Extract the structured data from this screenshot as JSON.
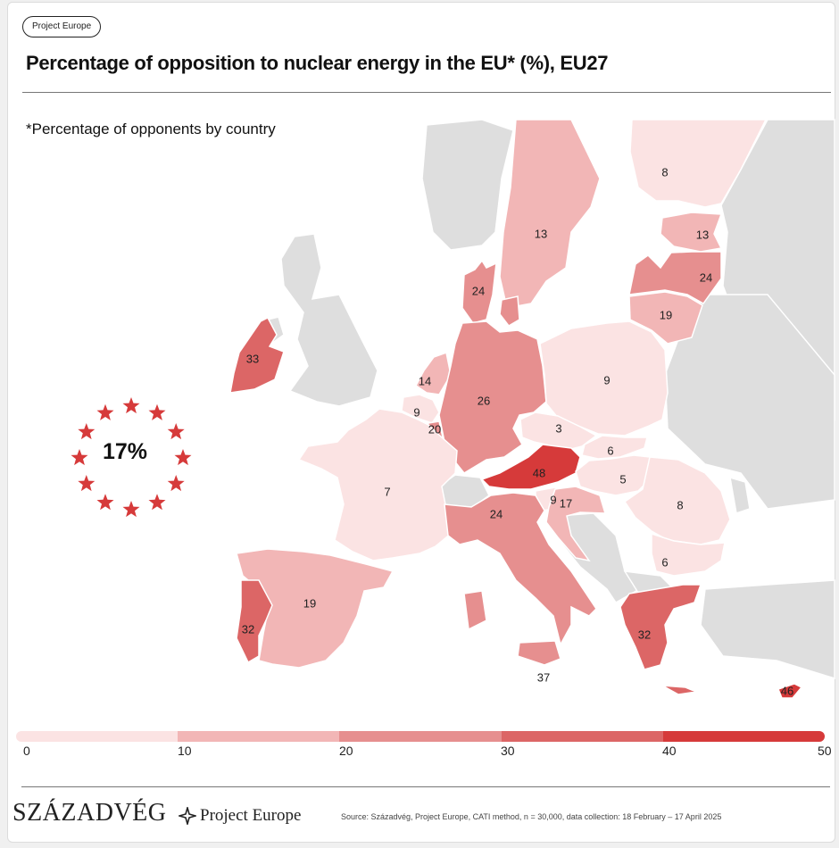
{
  "header": {
    "badge": "Project Europe",
    "title": "Percentage of opposition to nuclear energy in the EU* (%), EU27",
    "subtitle": "*Percentage of opponents by country"
  },
  "average": {
    "value": "17%",
    "icon": "eu-stars-circle-icon"
  },
  "map": {
    "colors": {
      "0-10": "#fbe3e3",
      "10-20": "#f2b6b6",
      "20-30": "#e68f8f",
      "30-40": "#dc6666",
      "40-50": "#d63a3a",
      "non_eu": "#dedede"
    },
    "countries": [
      {
        "id": "finland",
        "value": 8,
        "label": "8"
      },
      {
        "id": "sweden",
        "value": 13,
        "label": "13"
      },
      {
        "id": "estonia",
        "value": 13,
        "label": "13"
      },
      {
        "id": "latvia",
        "value": 24,
        "label": "24"
      },
      {
        "id": "lithuania",
        "value": 19,
        "label": "19"
      },
      {
        "id": "denmark",
        "value": 24,
        "label": "24"
      },
      {
        "id": "ireland",
        "value": 33,
        "label": "33"
      },
      {
        "id": "netherlands",
        "value": 14,
        "label": "14"
      },
      {
        "id": "belgium",
        "value": 9,
        "label": "9"
      },
      {
        "id": "luxembourg",
        "value": 20,
        "label": "20"
      },
      {
        "id": "germany",
        "value": 26,
        "label": "26"
      },
      {
        "id": "poland",
        "value": 9,
        "label": "9"
      },
      {
        "id": "czechia",
        "value": 3,
        "label": "3"
      },
      {
        "id": "slovakia",
        "value": 6,
        "label": "6"
      },
      {
        "id": "austria",
        "value": 48,
        "label": "48"
      },
      {
        "id": "hungary",
        "value": 5,
        "label": "5"
      },
      {
        "id": "slovenia",
        "value": 9,
        "label": "9"
      },
      {
        "id": "croatia",
        "value": 17,
        "label": "17"
      },
      {
        "id": "romania",
        "value": 8,
        "label": "8"
      },
      {
        "id": "bulgaria",
        "value": 6,
        "label": "6"
      },
      {
        "id": "france",
        "value": 7,
        "label": "7"
      },
      {
        "id": "italy",
        "value": 24,
        "label": "24"
      },
      {
        "id": "spain",
        "value": 19,
        "label": "19"
      },
      {
        "id": "portugal",
        "value": 32,
        "label": "32"
      },
      {
        "id": "greece",
        "value": 32,
        "label": "32"
      },
      {
        "id": "malta",
        "value": 37,
        "label": "37"
      },
      {
        "id": "cyprus",
        "value": 46,
        "label": "46"
      }
    ]
  },
  "legend": {
    "ticks": [
      "0",
      "10",
      "20",
      "30",
      "40",
      "50"
    ],
    "colors": [
      "#fbe3e3",
      "#f2b6b6",
      "#e68f8f",
      "#dc6666",
      "#d63a3a"
    ]
  },
  "footer": {
    "brand_szazadveg": "SZÁZADVÉG",
    "brand_project_europe": "Project Europe",
    "source": "Source: Századvég, Project Europe, CATI method, n = 30,000, data collection: 18 February – 17 April 2025"
  }
}
